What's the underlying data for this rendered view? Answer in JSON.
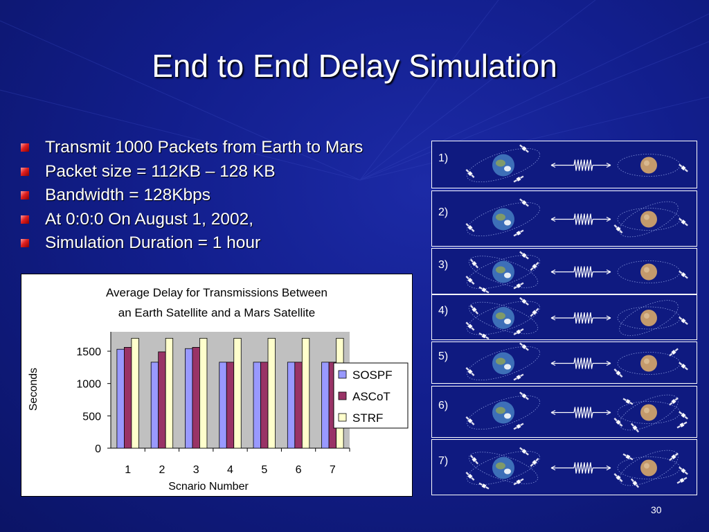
{
  "slide": {
    "title": "End to End Delay Simulation",
    "bullets": [
      "Transmit 1000 Packets from Earth to Mars",
      "Packet size = 112KB – 128 KB",
      "Bandwidth = 128Kbps",
      "At 0:0:0 On August 1, 2002,",
      "Simulation Duration = 1 hour"
    ],
    "page_number": "30"
  },
  "chart_data": {
    "type": "bar",
    "title": "Average Delay for Transmissions Between an Earth Satellite and a Mars Satellite",
    "title_lines": [
      "Average Delay for Transmissions Between",
      "an Earth Satellite and a Mars Satellite"
    ],
    "xlabel": "Scnario Number",
    "ylabel": "Seconds",
    "categories": [
      "1",
      "2",
      "3",
      "4",
      "5",
      "6",
      "7"
    ],
    "yticks": [
      "0",
      "500",
      "1000",
      "1500"
    ],
    "ylim": [
      0,
      1800
    ],
    "grid": false,
    "legend_position": "right",
    "series": [
      {
        "name": "SOSPF",
        "color": "#9999ff",
        "values": [
          1530,
          1330,
          1540,
          1330,
          1330,
          1330,
          1330
        ]
      },
      {
        "name": "ASCoT",
        "color": "#993366",
        "values": [
          1560,
          1490,
          1560,
          1330,
          1330,
          1330,
          1330
        ]
      },
      {
        "name": "STRF",
        "color": "#ffffcc",
        "values": [
          1700,
          1700,
          1700,
          1700,
          1700,
          1700,
          1700
        ]
      }
    ]
  },
  "scenarios": [
    {
      "label": "1)",
      "earth_sats": 3,
      "mars_sats": 1,
      "mars_orbit": 1
    },
    {
      "label": "2)",
      "earth_sats": 3,
      "mars_sats": 2,
      "mars_orbit": 2
    },
    {
      "label": "3)",
      "earth_sats": 6,
      "mars_sats": 1,
      "mars_orbit": 1
    },
    {
      "label": "4)",
      "earth_sats": 6,
      "mars_sats": 1,
      "mars_orbit": 2
    },
    {
      "label": "5)",
      "earth_sats": 3,
      "mars_sats": 3,
      "mars_orbit": 1
    },
    {
      "label": "6)",
      "earth_sats": 3,
      "mars_sats": 6,
      "mars_orbit": 2
    },
    {
      "label": "7)",
      "earth_sats": 6,
      "mars_sats": 6,
      "mars_orbit": 2
    }
  ]
}
